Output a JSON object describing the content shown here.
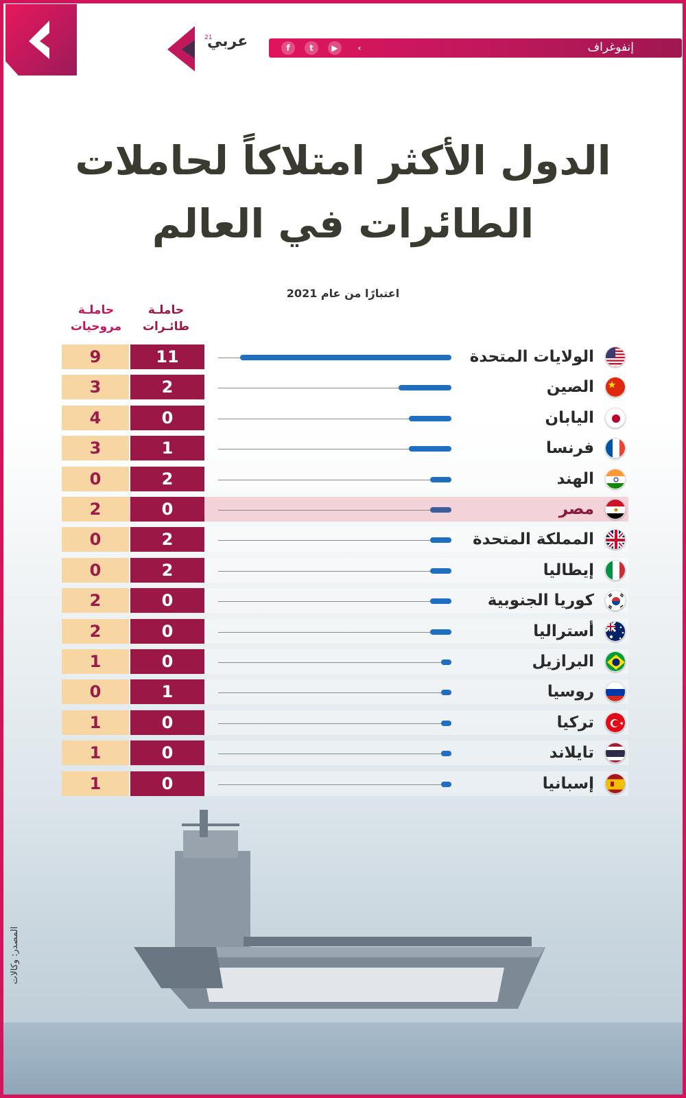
{
  "header": {
    "section_label": "إنفوغراف",
    "brand_name": "عربي",
    "brand_superscript": "21"
  },
  "title_line1": "الدول الأكثر امتلاكاً لحاملات",
  "title_line2": "الطائرات في العالم",
  "subtitle": "اعتبارًا من عام 2021",
  "columns": {
    "aircraft": "حاملـة طائـرات",
    "helicopter": "حاملـة مروحيات"
  },
  "source": "المصدر: وكالات",
  "colors": {
    "accent": "#d4145a",
    "aircraft_cell": "#9b1746",
    "helicopter_cell": "#f7d6a3",
    "bar": "#1e6fc2"
  },
  "chart_data": {
    "type": "bar",
    "categories": [
      "الولايات المتحدة",
      "الصين",
      "اليابان",
      "فرنسا",
      "الهند",
      "مصر",
      "المملكة المتحدة",
      "إيطاليا",
      "كوريا الجنوبية",
      "أستراليا",
      "البرازيل",
      "روسيا",
      "تركيا",
      "تايلاند",
      "إسبانيا"
    ],
    "flags": [
      "us-flag-icon",
      "cn-flag-icon",
      "jp-flag-icon",
      "fr-flag-icon",
      "in-flag-icon",
      "eg-flag-icon",
      "gb-flag-icon",
      "it-flag-icon",
      "kr-flag-icon",
      "au-flag-icon",
      "br-flag-icon",
      "ru-flag-icon",
      "tr-flag-icon",
      "th-flag-icon",
      "es-flag-icon"
    ],
    "series": [
      {
        "name": "حاملة طائرات",
        "values": [
          11,
          2,
          0,
          1,
          2,
          0,
          2,
          2,
          0,
          0,
          0,
          1,
          0,
          0,
          0
        ]
      },
      {
        "name": "حاملة مروحيات",
        "values": [
          9,
          3,
          4,
          3,
          0,
          2,
          0,
          0,
          2,
          2,
          1,
          0,
          1,
          1,
          1
        ]
      }
    ],
    "bar_values": [
      20,
      5,
      4,
      4,
      2,
      2,
      2,
      2,
      2,
      2,
      1,
      1,
      1,
      1,
      1
    ],
    "highlighted": "مصر"
  }
}
